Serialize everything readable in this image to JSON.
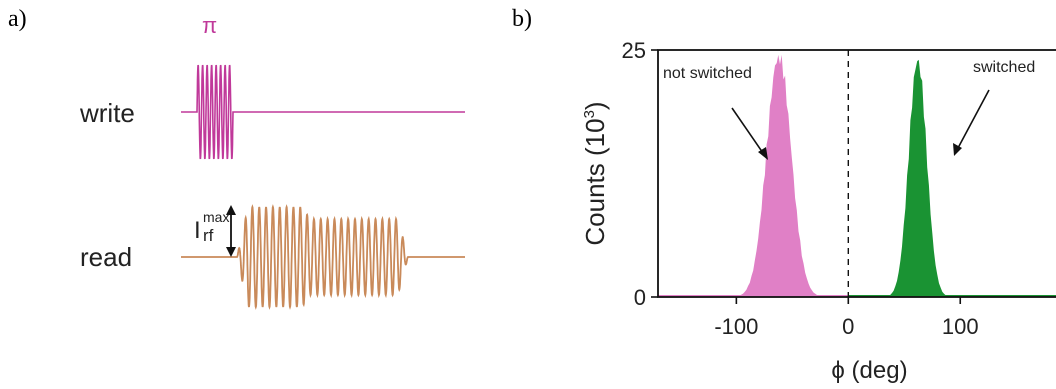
{
  "panel_a": {
    "label": "a)",
    "pulse_symbol": "π",
    "write_label": "write",
    "read_label": "read",
    "current_symbol": "I",
    "current_superscript": "max",
    "current_subscript": "rf",
    "colors": {
      "write": "#c0399a",
      "read": "#c98a5a"
    }
  },
  "panel_b": {
    "label": "b)",
    "annotations": {
      "not_switched": "not switched",
      "switched": "switched"
    }
  },
  "chart_data": {
    "type": "area",
    "xlabel": "ϕ (deg)",
    "ylabel": "Counts (10",
    "ylabel_sup": "3",
    "ylabel_close": ")",
    "xlim": [
      -170,
      190
    ],
    "ylim": [
      0,
      25
    ],
    "xticks": [
      -100,
      0,
      100
    ],
    "xtick_labels": [
      "-100",
      "0",
      "100"
    ],
    "yticks": [
      0,
      25
    ],
    "ytick_labels": [
      "0",
      "25"
    ],
    "reference_line": {
      "x": 0,
      "style": "dashed"
    },
    "series": [
      {
        "name": "not switched",
        "color": "#e080c6",
        "center": -62,
        "peak": 24.5,
        "sigma": 11
      },
      {
        "name": "switched",
        "color": "#1a9333",
        "center": 62,
        "peak": 24,
        "sigma": 8
      }
    ]
  }
}
